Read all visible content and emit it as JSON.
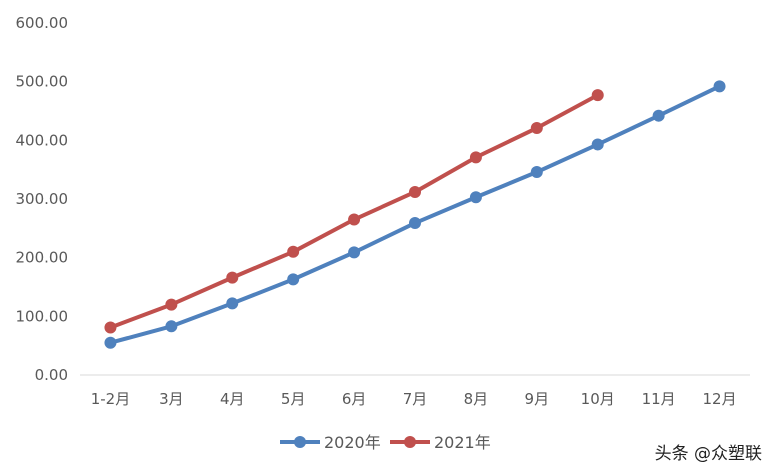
{
  "chart_data": {
    "type": "line",
    "title": "",
    "xlabel": "",
    "ylabel": "",
    "categories": [
      "1-2月",
      "3月",
      "4月",
      "5月",
      "6月",
      "7月",
      "8月",
      "9月",
      "10月",
      "11月",
      "12月"
    ],
    "ylim": [
      0,
      600
    ],
    "yticks": [
      "0.00",
      "100.00",
      "200.00",
      "300.00",
      "400.00",
      "500.00",
      "600.00"
    ],
    "grid": false,
    "legend": "bottom",
    "series": [
      {
        "name": "2020年",
        "color": "#4f81bd",
        "values": [
          55,
          83,
          122,
          163,
          209,
          259,
          303,
          346,
          393,
          442,
          492
        ]
      },
      {
        "name": "2021年",
        "color": "#c0504d",
        "values": [
          81,
          120,
          166,
          210,
          265,
          312,
          371,
          421,
          477,
          null,
          null
        ]
      }
    ]
  },
  "watermark": "头条 @众塑联"
}
